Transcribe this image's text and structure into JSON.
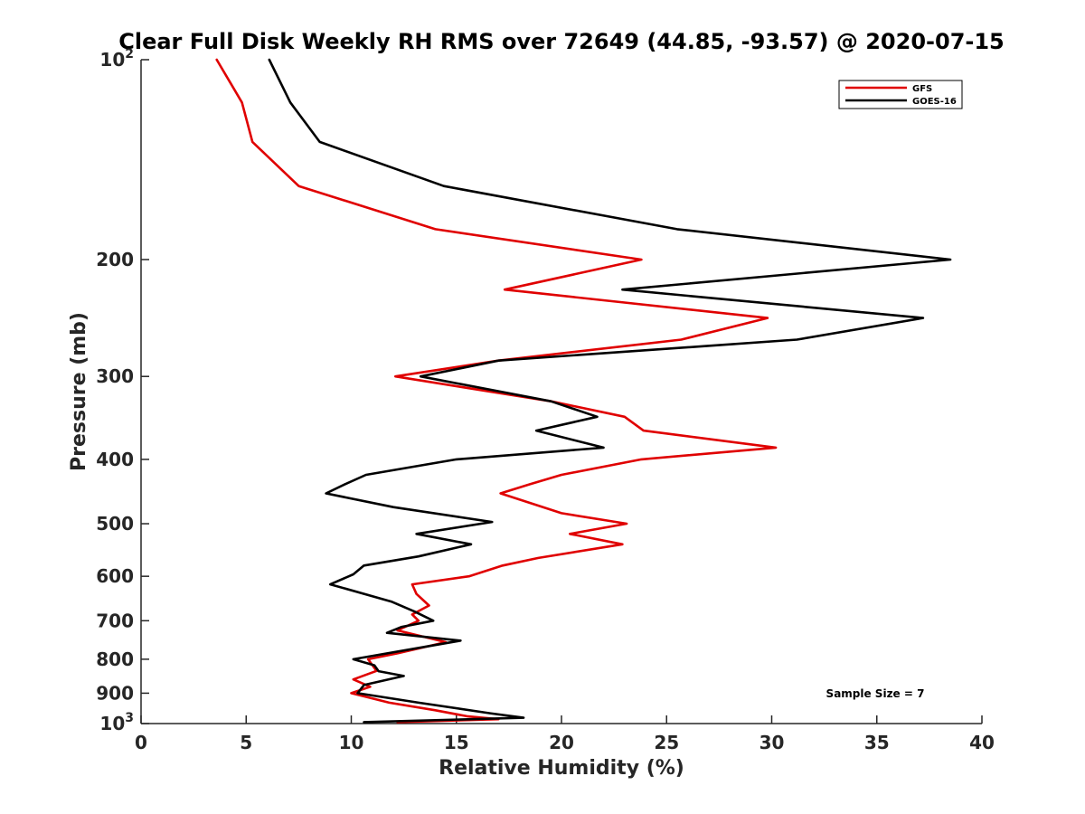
{
  "chart_data": {
    "type": "line",
    "title": "Clear Full Disk Weekly RH RMS over 72649 (44.85, -93.57) @ 2020-07-15",
    "xlabel": "Relative Humidity (%)",
    "ylabel": "Pressure (mb)",
    "xlim": [
      0,
      40
    ],
    "ylim": [
      100,
      1000
    ],
    "yscale": "log",
    "y_reversed": true,
    "grid": false,
    "legend_position": "top-right",
    "x_ticks": [
      "0",
      "5",
      "10",
      "15",
      "20",
      "25",
      "30",
      "35",
      "40"
    ],
    "y_ticks": [
      {
        "value": 100,
        "label": "10",
        "sup": "2"
      },
      {
        "value": 200,
        "label": "200",
        "sup": ""
      },
      {
        "value": 300,
        "label": "300",
        "sup": ""
      },
      {
        "value": 400,
        "label": "400",
        "sup": ""
      },
      {
        "value": 500,
        "label": "500",
        "sup": ""
      },
      {
        "value": 600,
        "label": "600",
        "sup": ""
      },
      {
        "value": 700,
        "label": "700",
        "sup": ""
      },
      {
        "value": 800,
        "label": "800",
        "sup": ""
      },
      {
        "value": 900,
        "label": "900",
        "sup": ""
      },
      {
        "value": 1000,
        "label": "10",
        "sup": "3"
      }
    ],
    "series": [
      {
        "name": "GFS",
        "color": "#e00000",
        "points": [
          [
            3.6,
            100
          ],
          [
            4.8,
            116
          ],
          [
            5.3,
            133
          ],
          [
            7.5,
            155
          ],
          [
            14.0,
            180
          ],
          [
            23.8,
            200
          ],
          [
            17.3,
            222
          ],
          [
            29.8,
            245
          ],
          [
            25.7,
            264
          ],
          [
            17.0,
            284
          ],
          [
            12.1,
            300
          ],
          [
            19.5,
            327
          ],
          [
            23.0,
            345
          ],
          [
            23.9,
            362
          ],
          [
            30.2,
            384
          ],
          [
            23.8,
            400
          ],
          [
            20.0,
            422
          ],
          [
            18.5,
            436
          ],
          [
            17.1,
            450
          ],
          [
            20.0,
            482
          ],
          [
            23.1,
            500
          ],
          [
            20.4,
            518
          ],
          [
            22.9,
            537
          ],
          [
            18.9,
            563
          ],
          [
            17.2,
            578
          ],
          [
            15.6,
            600
          ],
          [
            12.9,
            617
          ],
          [
            13.1,
            638
          ],
          [
            13.7,
            664
          ],
          [
            12.9,
            685
          ],
          [
            13.2,
            700
          ],
          [
            12.2,
            724
          ],
          [
            14.5,
            754
          ],
          [
            12.2,
            784
          ],
          [
            10.8,
            800
          ],
          [
            11.2,
            833
          ],
          [
            10.1,
            858
          ],
          [
            10.9,
            880
          ],
          [
            10.0,
            900
          ],
          [
            11.8,
            930
          ],
          [
            14.0,
            955
          ],
          [
            15.5,
            975
          ],
          [
            17.0,
            985
          ],
          [
            12.2,
            995
          ]
        ]
      },
      {
        "name": "GOES-16",
        "color": "#000000",
        "points": [
          [
            6.1,
            100
          ],
          [
            7.1,
            116
          ],
          [
            8.5,
            133
          ],
          [
            14.4,
            155
          ],
          [
            25.5,
            180
          ],
          [
            38.5,
            200
          ],
          [
            22.9,
            222
          ],
          [
            37.2,
            245
          ],
          [
            31.2,
            264
          ],
          [
            17.0,
            284
          ],
          [
            13.3,
            300
          ],
          [
            19.5,
            327
          ],
          [
            21.7,
            345
          ],
          [
            18.8,
            362
          ],
          [
            22.0,
            384
          ],
          [
            15.0,
            400
          ],
          [
            10.7,
            422
          ],
          [
            9.7,
            436
          ],
          [
            8.8,
            450
          ],
          [
            12.0,
            472
          ],
          [
            16.7,
            497
          ],
          [
            13.1,
            518
          ],
          [
            15.7,
            537
          ],
          [
            13.2,
            560
          ],
          [
            10.6,
            578
          ],
          [
            10.1,
            596
          ],
          [
            9.0,
            617
          ],
          [
            11.9,
            655
          ],
          [
            13.0,
            678
          ],
          [
            13.9,
            700
          ],
          [
            12.4,
            715
          ],
          [
            11.7,
            730
          ],
          [
            15.2,
            750
          ],
          [
            10.1,
            800
          ],
          [
            11.1,
            817
          ],
          [
            11.3,
            834
          ],
          [
            12.5,
            848
          ],
          [
            10.6,
            875
          ],
          [
            10.3,
            900
          ],
          [
            13.2,
            930
          ],
          [
            16.6,
            965
          ],
          [
            18.2,
            980
          ],
          [
            10.6,
            995
          ]
        ]
      }
    ],
    "annotation": "Sample Size = 7"
  }
}
